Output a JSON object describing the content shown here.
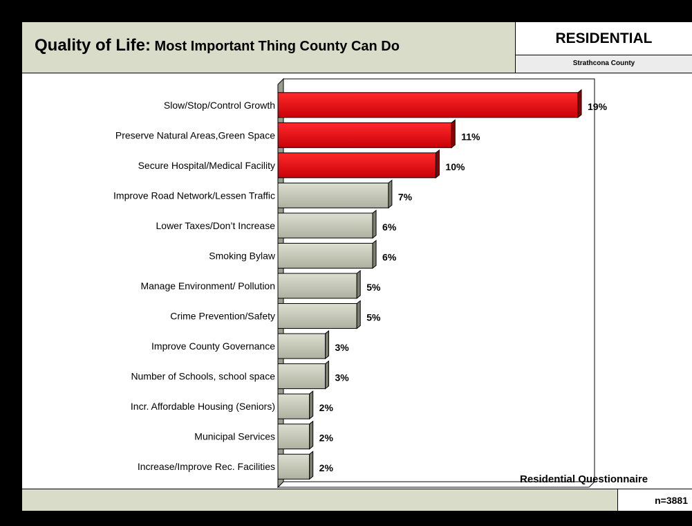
{
  "header": {
    "title_part1": "Quality of Life:",
    "title_part2": " Most Important Thing County Can Do",
    "segment": "RESIDENTIAL",
    "county": "Strathcona County"
  },
  "footer": {
    "source": "Residential Questionnaire",
    "sample": "n=3881"
  },
  "colors": {
    "highlight": "#e8000a",
    "normal": "#c6c9b8",
    "header_bg": "#d8dcc8"
  },
  "chart_data": {
    "type": "bar",
    "orientation": "horizontal",
    "title": "Quality of Life: Most Important Thing County Can Do",
    "categories": [
      "Slow/Stop/Control Growth",
      "Preserve Natural Areas,Green Space",
      "Secure Hospital/Medical Facility",
      "Improve Road Network/Lessen Traffic",
      "Lower Taxes/Don’t Increase",
      "Smoking Bylaw",
      "Manage Environment/ Pollution",
      "Crime Prevention/Safety",
      "Improve County Governance",
      "Number of Schools, school space",
      "Incr. Affordable Housing (Seniors)",
      "Municipal Services",
      "Increase/Improve Rec. Facilities"
    ],
    "values": [
      19,
      11,
      10,
      7,
      6,
      6,
      5,
      5,
      3,
      3,
      2,
      2,
      2
    ],
    "value_labels": [
      "19%",
      "11%",
      "10%",
      "7%",
      "6%",
      "6%",
      "5%",
      "5%",
      "3%",
      "3%",
      "2%",
      "2%",
      "2%"
    ],
    "highlighted": [
      true,
      true,
      true,
      false,
      false,
      false,
      false,
      false,
      false,
      false,
      false,
      false,
      false
    ],
    "xlim": [
      0,
      20
    ],
    "grid": false,
    "legend": "none"
  }
}
